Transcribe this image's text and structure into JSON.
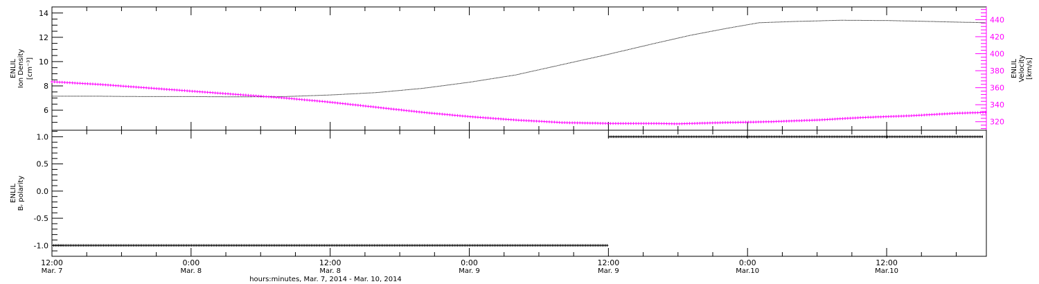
{
  "chart_data": [
    {
      "type": "scatter",
      "panel": "top",
      "xlabel": "hours:minutes, Mar.  7, 2014 - Mar. 10, 2014",
      "x_ticks": [
        {
          "hour": 12,
          "time": "12:00",
          "date": "Mar. 7"
        },
        {
          "hour": 24,
          "time": "0:00",
          "date": "Mar. 8"
        },
        {
          "hour": 36,
          "time": "12:00",
          "date": "Mar. 8"
        },
        {
          "hour": 48,
          "time": "0:00",
          "date": "Mar. 9"
        },
        {
          "hour": 60,
          "time": "12:00",
          "date": "Mar. 9"
        },
        {
          "hour": 72,
          "time": "0:00",
          "date": "Mar.10"
        },
        {
          "hour": 84,
          "time": "12:00",
          "date": "Mar.10"
        }
      ],
      "xlim": [
        12,
        92.6
      ],
      "ylabel_left": [
        "ENLIL",
        "Ion Density",
        "[cm⁻³]"
      ],
      "ylim_left": [
        4.35,
        14.5
      ],
      "yticks_left": [
        6,
        8,
        10,
        12,
        14
      ],
      "ylabel_right": [
        "ENLIL",
        "Velocity",
        "[km/s]"
      ],
      "ylim_right": [
        310,
        455
      ],
      "yticks_right": [
        320,
        340,
        360,
        380,
        400,
        420,
        440
      ],
      "series": [
        {
          "axis": "left",
          "color": "#000000",
          "points": [
            [
              12,
              7.15
            ],
            [
              16,
              7.15
            ],
            [
              20,
              7.12
            ],
            [
              24,
              7.12
            ],
            [
              28,
              7.1
            ],
            [
              32,
              7.12
            ],
            [
              36,
              7.25
            ],
            [
              40,
              7.45
            ],
            [
              44,
              7.8
            ],
            [
              48,
              8.3
            ],
            [
              52,
              8.9
            ],
            [
              56,
              9.75
            ],
            [
              60,
              10.6
            ],
            [
              64,
              11.5
            ],
            [
              67,
              12.15
            ],
            [
              70,
              12.7
            ],
            [
              73,
              13.2
            ],
            [
              76,
              13.3
            ],
            [
              80,
              13.4
            ],
            [
              84,
              13.38
            ],
            [
              88,
              13.3
            ],
            [
              90,
              13.25
            ],
            [
              92.6,
              13.2
            ]
          ]
        },
        {
          "axis": "right",
          "color": "#ff00ff",
          "points": [
            [
              12,
              367
            ],
            [
              16,
              364
            ],
            [
              20,
              360
            ],
            [
              24,
              356
            ],
            [
              28,
              352
            ],
            [
              32,
              348
            ],
            [
              36,
              343
            ],
            [
              40,
              337
            ],
            [
              44,
              331
            ],
            [
              48,
              326
            ],
            [
              52,
              322
            ],
            [
              56,
              319
            ],
            [
              60,
              318
            ],
            [
              64,
              318
            ],
            [
              66,
              317.5
            ],
            [
              70,
              319
            ],
            [
              74,
              320
            ],
            [
              78,
              322
            ],
            [
              82,
              325
            ],
            [
              86,
              327
            ],
            [
              90,
              330
            ],
            [
              92.6,
              331
            ]
          ]
        }
      ]
    },
    {
      "type": "scatter",
      "panel": "bottom",
      "ylabel": [
        "ENLIL",
        "Bᵣ polarity"
      ],
      "ylim": [
        -1.2,
        1.12
      ],
      "yticks": [
        "-1.0",
        "-0.5",
        "0.0",
        "0.5",
        "1.0"
      ],
      "series": [
        {
          "color": "#000000",
          "segments": [
            {
              "x_start": 12,
              "x_end": 60,
              "y": -1.0
            },
            {
              "x_start": 60,
              "x_end": 92.3,
              "y": 1.0
            }
          ]
        }
      ]
    }
  ]
}
